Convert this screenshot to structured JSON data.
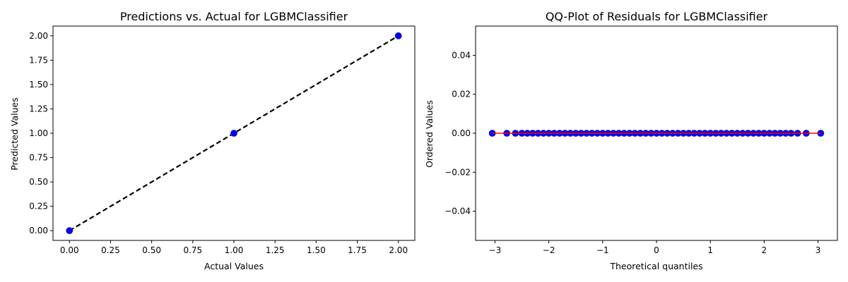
{
  "chart_data": [
    {
      "type": "scatter",
      "title": "Predictions vs. Actual for LGBMClassifier",
      "xlabel": "Actual Values",
      "ylabel": "Predicted Values",
      "xlim": [
        -0.1,
        2.1
      ],
      "ylim": [
        -0.1,
        2.1
      ],
      "xticks": [
        "0.00",
        "0.25",
        "0.50",
        "0.75",
        "1.00",
        "1.25",
        "1.50",
        "1.75",
        "2.00"
      ],
      "yticks": [
        "0.00",
        "0.25",
        "0.50",
        "0.75",
        "1.00",
        "1.25",
        "1.50",
        "1.75",
        "2.00"
      ],
      "grid": false,
      "legend": "none",
      "series": [
        {
          "points": [
            [
              0,
              0
            ],
            [
              1,
              1
            ],
            [
              2,
              2
            ]
          ],
          "color": "#0000ff",
          "marker": "circle"
        }
      ],
      "reference_line": {
        "from": [
          0,
          0
        ],
        "to": [
          2,
          2
        ],
        "style": "dashed",
        "color": "#000000"
      }
    },
    {
      "type": "scatter",
      "title": "QQ-Plot of Residuals for LGBMClassifier",
      "xlabel": "Theoretical quantiles",
      "ylabel": "Ordered Values",
      "xlim": [
        -3.36,
        3.36
      ],
      "ylim": [
        -0.055,
        0.055
      ],
      "xticks": [
        {
          "value": -3,
          "label": "−3"
        },
        {
          "value": -2,
          "label": "−2"
        },
        {
          "value": -1,
          "label": "−1"
        },
        {
          "value": 0,
          "label": "0"
        },
        {
          "value": 1,
          "label": "1"
        },
        {
          "value": 2,
          "label": "2"
        },
        {
          "value": 3,
          "label": "3"
        }
      ],
      "yticks": [
        {
          "value": 0.04,
          "label": "0.04"
        },
        {
          "value": 0.02,
          "label": "0.02"
        },
        {
          "value": 0,
          "label": "0.00"
        },
        {
          "value": -0.02,
          "label": "−0.02"
        },
        {
          "value": -0.04,
          "label": "−0.04"
        }
      ],
      "grid": false,
      "legend": "none",
      "series": [
        {
          "x": [
            -3.05,
            -2.78,
            -2.62,
            -2.5,
            -2.4,
            -2.3,
            -2.2,
            -2.1,
            -2.0,
            -1.9,
            -1.8,
            -1.7,
            -1.6,
            -1.5,
            -1.4,
            -1.3,
            -1.2,
            -1.1,
            -1.0,
            -0.9,
            -0.8,
            -0.7,
            -0.6,
            -0.5,
            -0.4,
            -0.3,
            -0.2,
            -0.1,
            0.0,
            0.1,
            0.2,
            0.3,
            0.4,
            0.5,
            0.6,
            0.7,
            0.8,
            0.9,
            1.0,
            1.1,
            1.2,
            1.3,
            1.4,
            1.5,
            1.6,
            1.7,
            1.8,
            1.9,
            2.0,
            2.1,
            2.2,
            2.3,
            2.4,
            2.5,
            2.62,
            2.78,
            3.05
          ],
          "y_all": 0,
          "color": "#0000ff",
          "marker": "circle"
        }
      ],
      "reference_line": {
        "from": [
          -3.05,
          0
        ],
        "to": [
          3.05,
          0
        ],
        "style": "solid",
        "color": "#ff0000"
      }
    }
  ]
}
